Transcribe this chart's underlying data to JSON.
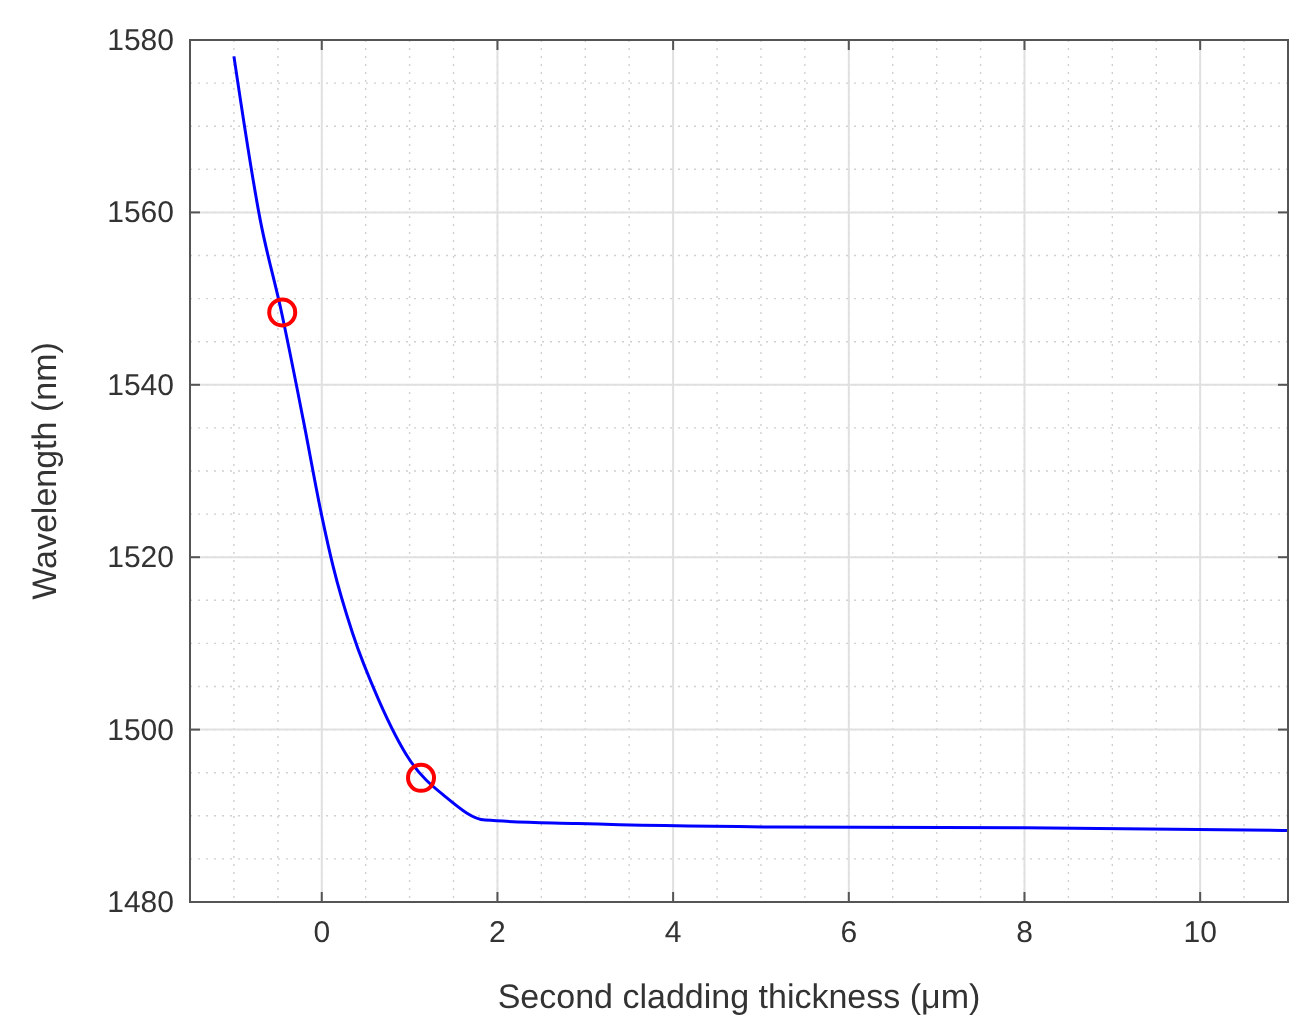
{
  "chart_data": {
    "type": "line",
    "xlabel": "Second cladding thickness (μm)",
    "ylabel": "Wavelength (nm)",
    "xlim": [
      -1.5,
      11
    ],
    "xticks": [
      0,
      2,
      4,
      6,
      8,
      10
    ],
    "ylim": [
      1480,
      1580
    ],
    "yticks": [
      1480,
      1500,
      1520,
      1540,
      1560,
      1580
    ],
    "grid": true,
    "series": [
      {
        "color": "#0000ff",
        "marker": "none",
        "x": [
          -1.0,
          -0.7,
          -0.46,
          -0.21,
          0,
          0.13,
          0.35,
          0.65,
          1.0,
          1.41,
          1.86,
          2.91,
          5.17,
          8,
          11
        ],
        "values": [
          1578.1,
          1559.1,
          1548.5,
          1535.9,
          1524.8,
          1518.9,
          1511.2,
          1503.4,
          1496.5,
          1492.2,
          1489.5,
          1489.1,
          1488.7,
          1488.6,
          1488.3
        ]
      },
      {
        "type": "scatter",
        "color": "#ff0000",
        "marker": "circle",
        "x": [
          -0.45,
          1.13
        ],
        "values": [
          1548.4,
          1494.4
        ]
      }
    ]
  }
}
